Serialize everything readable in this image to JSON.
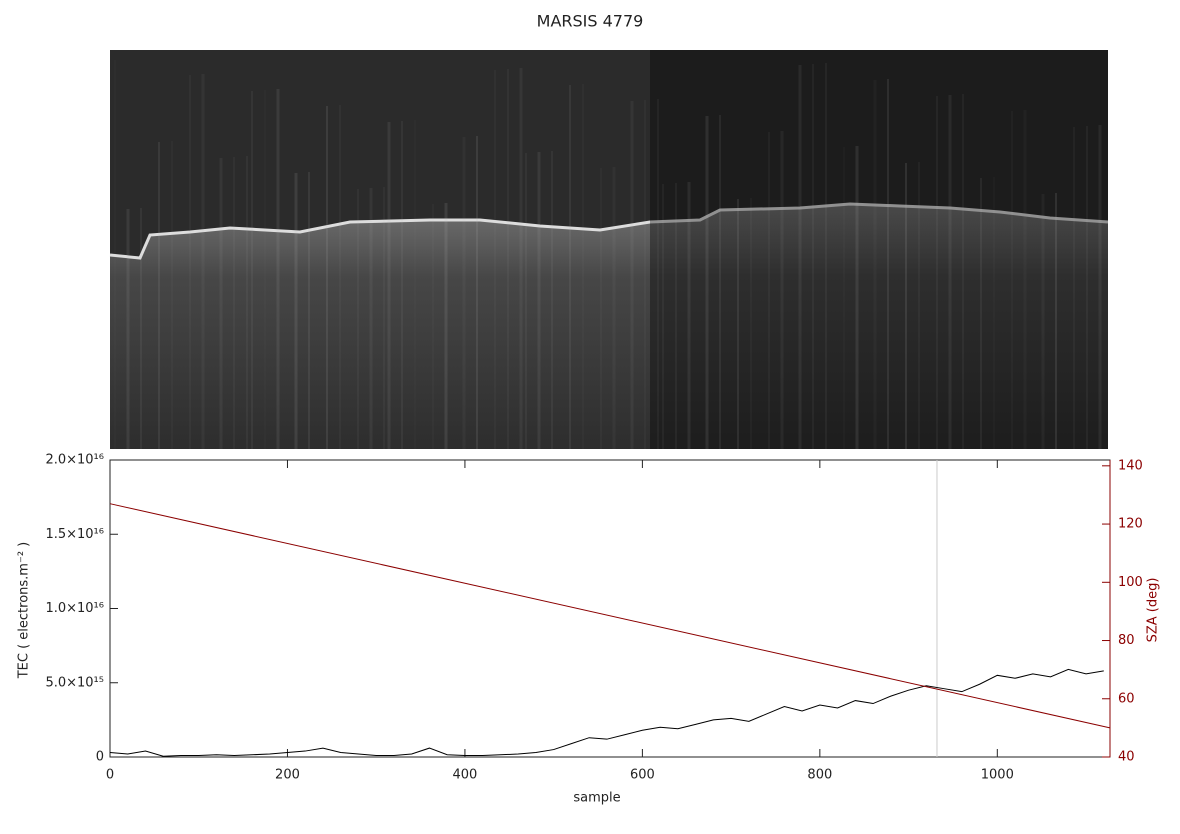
{
  "chart_data": {
    "type": "line",
    "title": "MARSIS 4779",
    "x_label": "sample",
    "y_label": "TEC ( electrons.m⁻² )",
    "y2_label": "SZA (deg)",
    "xlim": [
      0,
      1127
    ],
    "xticks": [
      0,
      200,
      400,
      600,
      800,
      1000
    ],
    "ylim": [
      0,
      2e+16
    ],
    "yticks": [
      0,
      {
        "value": 5000000000000000.0,
        "label": "5.0×10¹⁵"
      },
      {
        "value": 1e+16,
        "label": "1.0×10¹⁶"
      },
      {
        "value": 1.5e+16,
        "label": "1.5×10¹⁶"
      },
      {
        "value": 2e+16,
        "label": "2.0×10¹⁶"
      }
    ],
    "y2lim": [
      40,
      142
    ],
    "y2ticks": [
      40,
      60,
      80,
      100,
      120,
      140
    ],
    "y2_color": "#8b0000",
    "vline": 932,
    "series": [
      {
        "name": "TEC",
        "color": "#000000",
        "x": [
          0,
          20,
          40,
          60,
          80,
          100,
          120,
          140,
          160,
          180,
          200,
          220,
          240,
          260,
          280,
          300,
          320,
          340,
          360,
          380,
          400,
          420,
          440,
          460,
          480,
          500,
          520,
          540,
          560,
          580,
          600,
          620,
          640,
          660,
          680,
          700,
          720,
          740,
          760,
          780,
          800,
          820,
          840,
          860,
          880,
          900,
          920,
          940,
          960,
          980,
          1000,
          1020,
          1040,
          1060,
          1080,
          1100,
          1120
        ],
        "values": [
          300000000000000.0,
          200000000000000.0,
          400000000000000.0,
          50000000000000.0,
          100000000000000.0,
          100000000000000.0,
          150000000000000.0,
          100000000000000.0,
          150000000000000.0,
          200000000000000.0,
          300000000000000.0,
          400000000000000.0,
          600000000000000.0,
          300000000000000.0,
          200000000000000.0,
          100000000000000.0,
          100000000000000.0,
          200000000000000.0,
          600000000000000.0,
          150000000000000.0,
          100000000000000.0,
          100000000000000.0,
          150000000000000.0,
          200000000000000.0,
          300000000000000.0,
          500000000000000.0,
          900000000000000.0,
          1300000000000000.0,
          1200000000000000.0,
          1500000000000000.0,
          1800000000000000.0,
          2000000000000000.0,
          1900000000000000.0,
          2200000000000000.0,
          2500000000000000.0,
          2600000000000000.0,
          2400000000000000.0,
          2900000000000000.0,
          3400000000000000.0,
          3100000000000000.0,
          3500000000000000.0,
          3300000000000000.0,
          3800000000000000.0,
          3600000000000000.0,
          4100000000000000.0,
          4500000000000000.0,
          4800000000000000.0,
          4600000000000000.0,
          4400000000000000.0,
          4900000000000000.0,
          5500000000000000.0,
          5300000000000000.0,
          5600000000000000.0,
          5400000000000000.0,
          5900000000000000.0,
          5600000000000000.0,
          5800000000000000.0
        ]
      },
      {
        "name": "SZA",
        "color": "#8b0000",
        "axis": "y2",
        "x": [
          0,
          1127
        ],
        "values": [
          127,
          50
        ]
      }
    ]
  }
}
